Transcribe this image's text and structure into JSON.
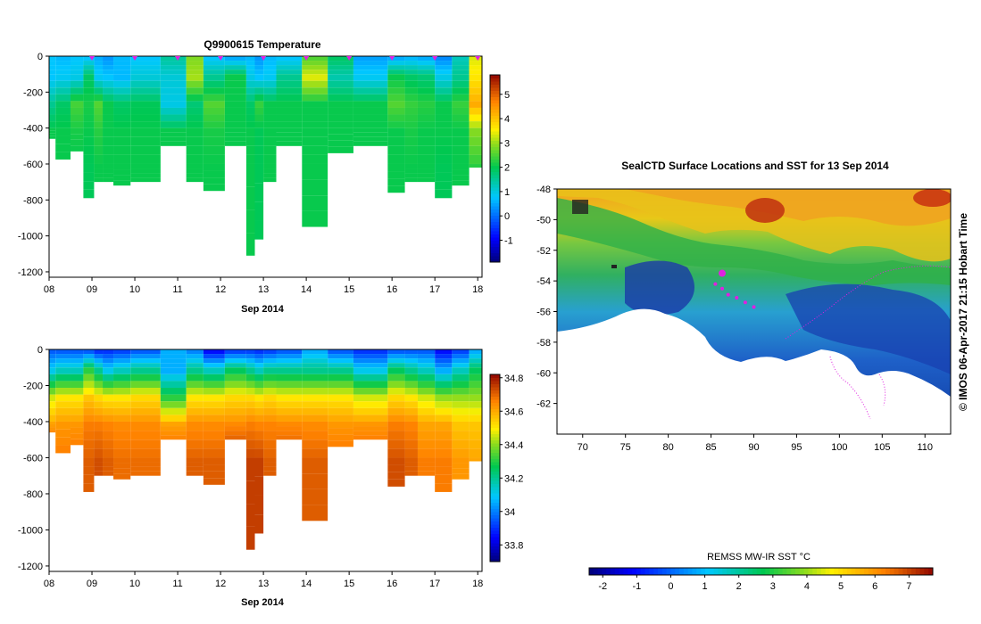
{
  "chart_data": [
    {
      "type": "heatmap",
      "title": "Q9900615  Temperature",
      "variable": "temperature",
      "xlabel": "Sep 2014",
      "ylabel": "",
      "x_ticks": [
        "08",
        "09",
        "10",
        "11",
        "12",
        "13",
        "14",
        "15",
        "16",
        "17",
        "18"
      ],
      "y_ticks": [
        0,
        -200,
        -400,
        -600,
        -800,
        -1000,
        -1200
      ],
      "ylim": [
        -1230,
        0
      ],
      "xlim": [
        8.0,
        18.1
      ],
      "colorbar": {
        "min": -1.9,
        "max": 5.8,
        "ticks": [
          "-1",
          "0",
          "1",
          "2",
          "3",
          "4",
          "5"
        ],
        "tick_values": [
          -1,
          0,
          1,
          2,
          3,
          4,
          5
        ]
      },
      "profile_markers": [
        9.0,
        10.0,
        11.0,
        12.0,
        13.0,
        14.0,
        15.0,
        16.0,
        17.0,
        18.0
      ],
      "profiles": [
        {
          "x": [
            8.0,
            8.15
          ],
          "depth": 460,
          "temp": [
            0.7,
            0.7,
            1.5,
            2.0,
            2.0
          ]
        },
        {
          "x": [
            8.15,
            8.5
          ],
          "depth": 575,
          "temp": [
            0.6,
            0.8,
            1.8,
            2.0,
            2.0
          ]
        },
        {
          "x": [
            8.5,
            8.8
          ],
          "depth": 530,
          "temp": [
            0.7,
            0.9,
            2.4,
            2.1,
            2.0
          ]
        },
        {
          "x": [
            8.8,
            9.05
          ],
          "depth": 790,
          "temp": [
            0.7,
            1.8,
            2.1,
            2.0,
            1.9
          ]
        },
        {
          "x": [
            9.05,
            9.25
          ],
          "depth": 700,
          "temp": [
            0.5,
            0.8,
            2.5,
            2.2,
            2.0
          ]
        },
        {
          "x": [
            9.25,
            9.5
          ],
          "depth": 700,
          "temp": [
            0.3,
            0.7,
            2.0,
            2.0,
            2.0
          ]
        },
        {
          "x": [
            9.5,
            9.9
          ],
          "depth": 720,
          "temp": [
            0.6,
            0.6,
            1.8,
            2.0,
            2.0
          ]
        },
        {
          "x": [
            9.9,
            10.6
          ],
          "depth": 700,
          "temp": [
            0.7,
            1.0,
            1.9,
            2.0,
            2.0
          ]
        },
        {
          "x": [
            10.6,
            11.2
          ],
          "depth": 500,
          "temp": [
            1.4,
            1.0,
            0.9,
            2.0,
            2.0
          ]
        },
        {
          "x": [
            11.2,
            11.6
          ],
          "depth": 700,
          "temp": [
            2.8,
            3.0,
            1.7,
            2.0,
            2.0
          ]
        },
        {
          "x": [
            11.6,
            12.1
          ],
          "depth": 750,
          "temp": [
            0.7,
            1.5,
            2.5,
            2.1,
            2.0
          ]
        },
        {
          "x": [
            12.1,
            12.6
          ],
          "depth": 500,
          "temp": [
            0.5,
            2.0,
            2.0,
            2.0,
            2.0
          ]
        },
        {
          "x": [
            12.6,
            12.8
          ],
          "depth": 1110,
          "temp": [
            0.6,
            0.9,
            1.8,
            2.0,
            2.0
          ]
        },
        {
          "x": [
            12.8,
            13.0
          ],
          "depth": 1020,
          "temp": [
            0.3,
            0.7,
            2.3,
            1.9,
            1.9
          ]
        },
        {
          "x": [
            13.0,
            13.3
          ],
          "depth": 700,
          "temp": [
            0.6,
            0.8,
            2.0,
            2.0,
            2.0
          ]
        },
        {
          "x": [
            13.3,
            13.9
          ],
          "depth": 500,
          "temp": [
            0.7,
            1.5,
            2.0,
            2.0,
            2.0
          ]
        },
        {
          "x": [
            13.9,
            14.5
          ],
          "depth": 950,
          "temp": [
            2.5,
            3.3,
            2.0,
            2.0,
            2.0
          ]
        },
        {
          "x": [
            14.5,
            15.1
          ],
          "depth": 540,
          "temp": [
            1.8,
            1.3,
            2.0,
            2.0,
            2.0
          ]
        },
        {
          "x": [
            15.1,
            15.9
          ],
          "depth": 500,
          "temp": [
            0.4,
            0.8,
            2.0,
            2.0,
            2.0
          ]
        },
        {
          "x": [
            15.9,
            16.3
          ],
          "depth": 760,
          "temp": [
            0.5,
            2.0,
            2.5,
            2.0,
            2.0
          ]
        },
        {
          "x": [
            16.3,
            16.6
          ],
          "depth": 700,
          "temp": [
            0.6,
            1.8,
            2.3,
            2.1,
            2.0
          ]
        },
        {
          "x": [
            16.6,
            17.0
          ],
          "depth": 700,
          "temp": [
            0.5,
            1.7,
            2.2,
            2.0,
            2.0
          ]
        },
        {
          "x": [
            17.0,
            17.4
          ],
          "depth": 790,
          "temp": [
            0.2,
            0.9,
            2.0,
            2.0,
            1.9
          ]
        },
        {
          "x": [
            17.4,
            17.8
          ],
          "depth": 720,
          "temp": [
            1.2,
            1.5,
            2.3,
            2.0,
            2.0
          ]
        },
        {
          "x": [
            17.8,
            18.1
          ],
          "depth": 620,
          "temp": [
            3.3,
            3.6,
            4.2,
            2.8,
            2.2
          ]
        }
      ]
    },
    {
      "type": "heatmap",
      "title": "",
      "variable": "salinity",
      "xlabel": "Sep 2014",
      "ylabel": "",
      "x_ticks": [
        "08",
        "09",
        "10",
        "11",
        "12",
        "13",
        "14",
        "15",
        "16",
        "17",
        "18"
      ],
      "y_ticks": [
        0,
        -200,
        -400,
        -600,
        -800,
        -1000,
        -1200
      ],
      "ylim": [
        -1230,
        0
      ],
      "xlim": [
        8.0,
        18.1
      ],
      "colorbar": {
        "min": 33.7,
        "max": 34.82,
        "ticks": [
          "33.8",
          "34",
          "34.2",
          "34.4",
          "34.6",
          "34.8"
        ],
        "tick_values": [
          33.8,
          34.0,
          34.2,
          34.4,
          34.6,
          34.8
        ]
      },
      "profiles": [
        {
          "x": [
            8.0,
            8.15
          ],
          "depth": 460,
          "sal": [
            33.95,
            34.1,
            34.45,
            34.6,
            34.65
          ]
        },
        {
          "x": [
            8.15,
            8.5
          ],
          "depth": 575,
          "sal": [
            33.95,
            34.15,
            34.5,
            34.62,
            34.66
          ]
        },
        {
          "x": [
            8.5,
            8.8
          ],
          "depth": 530,
          "sal": [
            33.95,
            34.15,
            34.5,
            34.62,
            34.66
          ]
        },
        {
          "x": [
            8.8,
            9.05
          ],
          "depth": 790,
          "sal": [
            33.95,
            34.3,
            34.55,
            34.66,
            34.7
          ]
        },
        {
          "x": [
            9.05,
            9.25
          ],
          "depth": 700,
          "sal": [
            33.9,
            34.2,
            34.52,
            34.66,
            34.72
          ]
        },
        {
          "x": [
            9.25,
            9.5
          ],
          "depth": 700,
          "sal": [
            33.9,
            34.1,
            34.5,
            34.65,
            34.7
          ]
        },
        {
          "x": [
            9.5,
            9.9
          ],
          "depth": 720,
          "sal": [
            33.92,
            34.15,
            34.5,
            34.64,
            34.68
          ]
        },
        {
          "x": [
            9.9,
            10.6
          ],
          "depth": 700,
          "sal": [
            33.95,
            34.2,
            34.52,
            34.64,
            34.68
          ]
        },
        {
          "x": [
            10.6,
            11.2
          ],
          "depth": 500,
          "sal": [
            34.05,
            34.05,
            34.3,
            34.6,
            34.66
          ]
        },
        {
          "x": [
            11.2,
            11.6
          ],
          "depth": 700,
          "sal": [
            34.0,
            34.2,
            34.5,
            34.64,
            34.7
          ]
        },
        {
          "x": [
            11.6,
            12.1
          ],
          "depth": 750,
          "sal": [
            33.85,
            34.15,
            34.5,
            34.64,
            34.7
          ]
        },
        {
          "x": [
            12.1,
            12.6
          ],
          "depth": 500,
          "sal": [
            33.92,
            34.25,
            34.52,
            34.64,
            34.7
          ]
        },
        {
          "x": [
            12.6,
            12.8
          ],
          "depth": 1110,
          "sal": [
            33.92,
            34.2,
            34.52,
            34.66,
            34.74
          ]
        },
        {
          "x": [
            12.8,
            13.0
          ],
          "depth": 1020,
          "sal": [
            33.9,
            34.15,
            34.5,
            34.65,
            34.74
          ]
        },
        {
          "x": [
            13.0,
            13.3
          ],
          "depth": 700,
          "sal": [
            33.92,
            34.2,
            34.52,
            34.65,
            34.7
          ]
        },
        {
          "x": [
            13.3,
            13.9
          ],
          "depth": 500,
          "sal": [
            33.95,
            34.2,
            34.5,
            34.64,
            34.68
          ]
        },
        {
          "x": [
            13.9,
            14.5
          ],
          "depth": 950,
          "sal": [
            34.05,
            34.2,
            34.5,
            34.64,
            34.7
          ]
        },
        {
          "x": [
            14.5,
            15.1
          ],
          "depth": 540,
          "sal": [
            33.95,
            34.2,
            34.5,
            34.62,
            34.66
          ]
        },
        {
          "x": [
            15.1,
            15.9
          ],
          "depth": 500,
          "sal": [
            33.9,
            34.1,
            34.45,
            34.62,
            34.66
          ]
        },
        {
          "x": [
            15.9,
            16.3
          ],
          "depth": 760,
          "sal": [
            33.95,
            34.25,
            34.52,
            34.66,
            34.72
          ]
        },
        {
          "x": [
            16.3,
            16.6
          ],
          "depth": 700,
          "sal": [
            33.95,
            34.2,
            34.5,
            34.65,
            34.7
          ]
        },
        {
          "x": [
            16.6,
            17.0
          ],
          "depth": 700,
          "sal": [
            33.95,
            34.15,
            34.45,
            34.6,
            34.66
          ]
        },
        {
          "x": [
            17.0,
            17.4
          ],
          "depth": 790,
          "sal": [
            33.85,
            34.05,
            34.4,
            34.6,
            34.66
          ]
        },
        {
          "x": [
            17.4,
            17.8
          ],
          "depth": 720,
          "sal": [
            33.92,
            34.15,
            34.4,
            34.55,
            34.62
          ]
        },
        {
          "x": [
            17.8,
            18.1
          ],
          "depth": 620,
          "sal": [
            34.05,
            34.25,
            34.4,
            34.55,
            34.6
          ]
        }
      ]
    },
    {
      "type": "heatmap",
      "title": "SealCTD Surface Locations and SST for 13 Sep 2014",
      "variable": "sea surface temperature",
      "xlabel": "",
      "ylabel": "",
      "x_ticks": [
        "70",
        "75",
        "80",
        "85",
        "90",
        "95",
        "100",
        "105",
        "110"
      ],
      "x_tick_values": [
        70,
        75,
        80,
        85,
        90,
        95,
        100,
        105,
        110
      ],
      "y_ticks": [
        "-48",
        "-50",
        "-52",
        "-54",
        "-56",
        "-58",
        "-60",
        "-62"
      ],
      "y_tick_values": [
        -48,
        -50,
        -52,
        -54,
        -56,
        -58,
        -60,
        -62
      ],
      "xlim": [
        67,
        113
      ],
      "ylim": [
        -64,
        -48
      ],
      "colorbar_title": "REMSS MW-IR SST °C",
      "colorbar": {
        "min": -2.4,
        "max": 7.7,
        "ticks": [
          "-2",
          "-1",
          "0",
          "1",
          "2",
          "3",
          "4",
          "5",
          "6",
          "7"
        ],
        "tick_values": [
          -2,
          -1,
          0,
          1,
          2,
          3,
          4,
          5,
          6,
          7
        ]
      },
      "seal_track": [
        [
          85.5,
          -54.2
        ],
        [
          86.3,
          -54.5
        ],
        [
          87,
          -54.9
        ],
        [
          88,
          -55.1
        ],
        [
          89,
          -55.4
        ],
        [
          90,
          -55.7
        ]
      ],
      "seal_surface_location": [
        86.3,
        -53.5
      ],
      "side_label": "© IMOS 06-Apr-2017 21:15 Hobart Time"
    }
  ]
}
